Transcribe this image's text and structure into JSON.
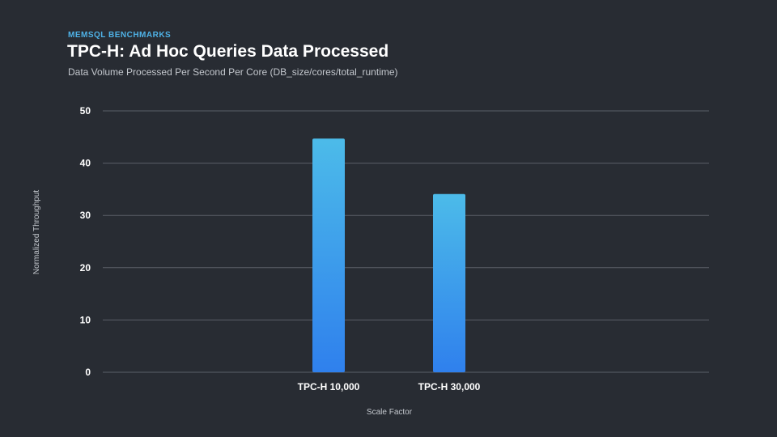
{
  "header": {
    "eyebrow": "MEMSQL BENCHMARKS",
    "title": "TPC-H: Ad Hoc Queries Data Processed",
    "subtitle": "Data Volume Processed Per Second Per Core (DB_size/cores/total_runtime)"
  },
  "chart_data": {
    "type": "bar",
    "title": "TPC-H: Ad Hoc Queries Data Processed",
    "subtitle": "Data Volume Processed Per Second Per Core (DB_size/cores/total_runtime)",
    "categories": [
      "TPC-H 10,000",
      "TPC-H 30,000"
    ],
    "values": [
      44.7,
      34.1
    ],
    "xlabel": "Scale Factor",
    "ylabel": "Normalized Throughput",
    "ylim": [
      0,
      50
    ],
    "yticks": [
      0,
      10,
      20,
      30,
      40,
      50
    ],
    "grid": true,
    "legend": "none",
    "colors": {
      "bar_top": "#4cbbe9",
      "bar_bottom": "#2f80ed",
      "grid": "#5a5f68",
      "background": "#282c33"
    }
  }
}
